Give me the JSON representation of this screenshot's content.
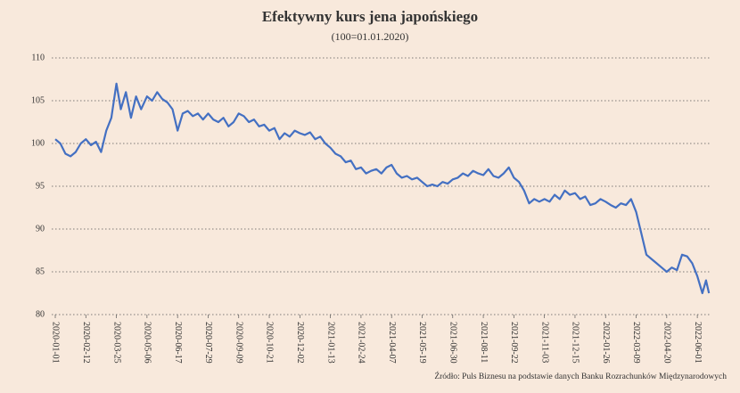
{
  "chart_data": {
    "type": "line",
    "title": "Efektywny kurs jena japońskiego",
    "subtitle": "(100=01.01.2020)",
    "source": "Źródło: Puls Biznesu na podstawie danych Banku Rozrachunków Międzynarodowych",
    "grid": true,
    "ylim": [
      80,
      110
    ],
    "yticks": [
      80,
      85,
      90,
      95,
      100,
      105,
      110
    ],
    "xlim": [
      "2020-01-01",
      "2022-06-18"
    ],
    "xticks": [
      "2020-01-01",
      "2020-02-12",
      "2020-03-25",
      "2020-05-06",
      "2020-06-17",
      "2020-07-29",
      "2020-09-09",
      "2020-10-21",
      "2020-12-02",
      "2021-01-13",
      "2021-02-24",
      "2021-04-07",
      "2021-05-19",
      "2021-06-30",
      "2021-08-11",
      "2021-09-22",
      "2021-11-03",
      "2021-12-15",
      "2022-01-26",
      "2022-03-09",
      "2022-04-20",
      "2022-06-01"
    ],
    "x": [
      "2020-01-01",
      "2020-01-08",
      "2020-01-15",
      "2020-01-22",
      "2020-01-29",
      "2020-02-05",
      "2020-02-12",
      "2020-02-19",
      "2020-02-26",
      "2020-03-04",
      "2020-03-11",
      "2020-03-18",
      "2020-03-25",
      "2020-03-31",
      "2020-04-07",
      "2020-04-14",
      "2020-04-21",
      "2020-04-28",
      "2020-05-06",
      "2020-05-13",
      "2020-05-20",
      "2020-05-27",
      "2020-06-03",
      "2020-06-10",
      "2020-06-17",
      "2020-06-24",
      "2020-07-01",
      "2020-07-08",
      "2020-07-15",
      "2020-07-22",
      "2020-07-29",
      "2020-08-05",
      "2020-08-12",
      "2020-08-19",
      "2020-08-26",
      "2020-09-02",
      "2020-09-09",
      "2020-09-16",
      "2020-09-23",
      "2020-09-30",
      "2020-10-07",
      "2020-10-14",
      "2020-10-21",
      "2020-10-28",
      "2020-11-04",
      "2020-11-11",
      "2020-11-18",
      "2020-11-25",
      "2020-12-02",
      "2020-12-09",
      "2020-12-16",
      "2020-12-23",
      "2020-12-30",
      "2021-01-06",
      "2021-01-13",
      "2021-01-20",
      "2021-01-27",
      "2021-02-03",
      "2021-02-10",
      "2021-02-17",
      "2021-02-24",
      "2021-03-03",
      "2021-03-10",
      "2021-03-17",
      "2021-03-24",
      "2021-03-31",
      "2021-04-07",
      "2021-04-14",
      "2021-04-21",
      "2021-04-28",
      "2021-05-05",
      "2021-05-12",
      "2021-05-19",
      "2021-05-26",
      "2021-06-02",
      "2021-06-09",
      "2021-06-16",
      "2021-06-23",
      "2021-06-30",
      "2021-07-07",
      "2021-07-14",
      "2021-07-21",
      "2021-07-28",
      "2021-08-04",
      "2021-08-11",
      "2021-08-18",
      "2021-08-25",
      "2021-09-01",
      "2021-09-08",
      "2021-09-15",
      "2021-09-22",
      "2021-09-29",
      "2021-10-06",
      "2021-10-13",
      "2021-10-20",
      "2021-10-27",
      "2021-11-03",
      "2021-11-10",
      "2021-11-17",
      "2021-11-24",
      "2021-12-01",
      "2021-12-08",
      "2021-12-15",
      "2021-12-22",
      "2021-12-29",
      "2022-01-05",
      "2022-01-12",
      "2022-01-19",
      "2022-01-26",
      "2022-02-02",
      "2022-02-09",
      "2022-02-16",
      "2022-02-23",
      "2022-03-02",
      "2022-03-09",
      "2022-03-16",
      "2022-03-23",
      "2022-03-30",
      "2022-04-06",
      "2022-04-13",
      "2022-04-20",
      "2022-04-27",
      "2022-05-04",
      "2022-05-11",
      "2022-05-18",
      "2022-05-25",
      "2022-06-01",
      "2022-06-08",
      "2022-06-13",
      "2022-06-17"
    ],
    "series": [
      {
        "name": "Efektywny kurs jena japońskiego",
        "color": "#4470c2",
        "values": [
          100.5,
          100.0,
          98.8,
          98.5,
          99.0,
          100.0,
          100.5,
          99.8,
          100.2,
          99.0,
          101.5,
          103.0,
          107.0,
          104.0,
          106.0,
          103.0,
          105.5,
          104.0,
          105.5,
          105.0,
          106.0,
          105.2,
          104.8,
          104.0,
          101.5,
          103.5,
          103.8,
          103.2,
          103.5,
          102.8,
          103.5,
          102.8,
          102.5,
          103.0,
          102.0,
          102.5,
          103.5,
          103.2,
          102.5,
          102.8,
          102.0,
          102.2,
          101.5,
          101.8,
          100.5,
          101.2,
          100.8,
          101.5,
          101.2,
          101.0,
          101.3,
          100.5,
          100.8,
          100.0,
          99.5,
          98.8,
          98.5,
          97.8,
          98.0,
          97.0,
          97.2,
          96.5,
          96.8,
          97.0,
          96.5,
          97.2,
          97.5,
          96.5,
          96.0,
          96.2,
          95.8,
          96.0,
          95.5,
          95.0,
          95.2,
          95.0,
          95.5,
          95.3,
          95.8,
          96.0,
          96.5,
          96.2,
          96.8,
          96.5,
          96.3,
          97.0,
          96.2,
          96.0,
          96.5,
          97.2,
          96.0,
          95.5,
          94.5,
          93.0,
          93.5,
          93.2,
          93.5,
          93.2,
          94.0,
          93.5,
          94.5,
          94.0,
          94.2,
          93.5,
          93.8,
          92.8,
          93.0,
          93.5,
          93.2,
          92.8,
          92.5,
          93.0,
          92.8,
          93.5,
          92.0,
          89.5,
          87.0,
          86.5,
          86.0,
          85.5,
          85.0,
          85.5,
          85.2,
          87.0,
          86.8,
          86.0,
          84.5,
          82.5,
          84.0,
          82.5
        ]
      }
    ]
  }
}
